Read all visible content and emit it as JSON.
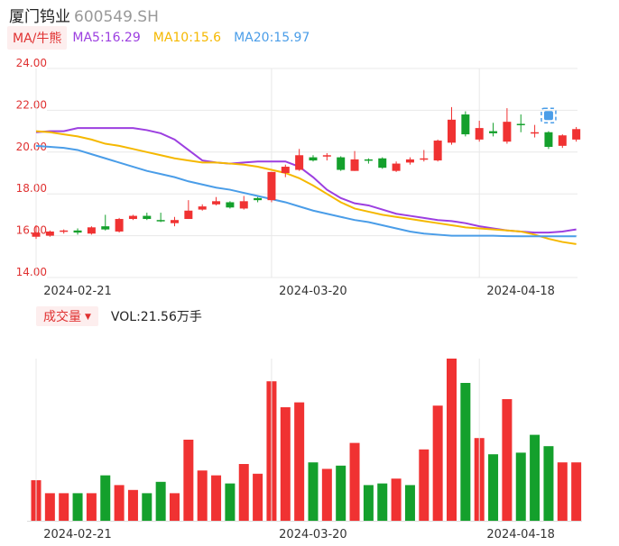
{
  "header": {
    "name": "厦门钨业",
    "code": "600549.SH"
  },
  "ma_legend": {
    "tag": "MA/牛熊",
    "items": [
      {
        "label": "MA5:16.29",
        "color": "#9c3fe0"
      },
      {
        "label": "MA10:15.6",
        "color": "#f5b800"
      },
      {
        "label": "MA20:15.97",
        "color": "#4a9de8"
      }
    ]
  },
  "volume_legend": {
    "tag": "成交量",
    "value_label": "VOL:21.56万手"
  },
  "colors": {
    "up": "#f03232",
    "down": "#14a02c",
    "axis_text": "#e03131",
    "grid": "#e8e8e8"
  },
  "chart_data": [
    {
      "type": "candlestick",
      "title": "",
      "y_ticks": [
        "24.00",
        "22.00",
        "20.00",
        "18.00",
        "16.00",
        "14.00"
      ],
      "ylim": [
        14,
        24
      ],
      "x_tick_labels": [
        {
          "index": 0,
          "label": "2024-02-21"
        },
        {
          "index": 17,
          "label": "2024-03-20"
        },
        {
          "index": 32,
          "label": "2024-04-18"
        }
      ],
      "grid": true,
      "candles": [
        {
          "o": 15.95,
          "c": 16.15,
          "h": 16.5,
          "l": 15.85
        },
        {
          "o": 16.0,
          "c": 16.2,
          "h": 16.25,
          "l": 15.95
        },
        {
          "o": 16.2,
          "c": 16.25,
          "h": 16.3,
          "l": 16.1
        },
        {
          "o": 16.25,
          "c": 16.15,
          "h": 16.35,
          "l": 16.05
        },
        {
          "o": 16.1,
          "c": 16.4,
          "h": 16.45,
          "l": 16.05
        },
        {
          "o": 16.45,
          "c": 16.3,
          "h": 17.0,
          "l": 16.25
        },
        {
          "o": 16.2,
          "c": 16.8,
          "h": 16.85,
          "l": 16.15
        },
        {
          "o": 16.8,
          "c": 16.95,
          "h": 17.0,
          "l": 16.75
        },
        {
          "o": 16.95,
          "c": 16.8,
          "h": 17.1,
          "l": 16.75
        },
        {
          "o": 16.75,
          "c": 16.7,
          "h": 17.1,
          "l": 16.65
        },
        {
          "o": 16.6,
          "c": 16.75,
          "h": 16.9,
          "l": 16.45
        },
        {
          "o": 16.8,
          "c": 17.2,
          "h": 17.7,
          "l": 16.8
        },
        {
          "o": 17.25,
          "c": 17.4,
          "h": 17.5,
          "l": 17.2
        },
        {
          "o": 17.5,
          "c": 17.65,
          "h": 17.85,
          "l": 17.45
        },
        {
          "o": 17.6,
          "c": 17.35,
          "h": 17.65,
          "l": 17.3
        },
        {
          "o": 17.3,
          "c": 17.65,
          "h": 17.9,
          "l": 17.25
        },
        {
          "o": 17.8,
          "c": 17.7,
          "h": 17.85,
          "l": 17.6
        },
        {
          "o": 17.7,
          "c": 19.05,
          "h": 19.05,
          "l": 17.6
        },
        {
          "o": 19.0,
          "c": 19.3,
          "h": 19.4,
          "l": 18.8
        },
        {
          "o": 19.15,
          "c": 19.85,
          "h": 20.15,
          "l": 19.1
        },
        {
          "o": 19.75,
          "c": 19.6,
          "h": 19.85,
          "l": 19.55
        },
        {
          "o": 19.8,
          "c": 19.85,
          "h": 19.95,
          "l": 19.6
        },
        {
          "o": 19.75,
          "c": 19.15,
          "h": 19.8,
          "l": 19.1
        },
        {
          "o": 19.1,
          "c": 19.65,
          "h": 20.05,
          "l": 19.1
        },
        {
          "o": 19.65,
          "c": 19.6,
          "h": 19.7,
          "l": 19.45
        },
        {
          "o": 19.7,
          "c": 19.25,
          "h": 19.75,
          "l": 19.2
        },
        {
          "o": 19.1,
          "c": 19.45,
          "h": 19.55,
          "l": 19.05
        },
        {
          "o": 19.5,
          "c": 19.65,
          "h": 19.75,
          "l": 19.4
        },
        {
          "o": 19.65,
          "c": 19.7,
          "h": 20.1,
          "l": 19.55
        },
        {
          "o": 19.6,
          "c": 20.55,
          "h": 20.6,
          "l": 19.55
        },
        {
          "o": 20.45,
          "c": 21.55,
          "h": 22.15,
          "l": 20.35
        },
        {
          "o": 21.8,
          "c": 20.85,
          "h": 21.95,
          "l": 20.75
        },
        {
          "o": 20.6,
          "c": 21.15,
          "h": 21.5,
          "l": 20.5
        },
        {
          "o": 21.0,
          "c": 20.9,
          "h": 21.4,
          "l": 20.75
        },
        {
          "o": 20.5,
          "c": 21.45,
          "h": 22.1,
          "l": 20.4
        },
        {
          "o": 21.35,
          "c": 21.3,
          "h": 21.8,
          "l": 20.95
        },
        {
          "o": 20.9,
          "c": 20.95,
          "h": 21.3,
          "l": 20.7
        },
        {
          "o": 20.95,
          "c": 20.25,
          "h": 21.0,
          "l": 20.15
        },
        {
          "o": 20.3,
          "c": 20.8,
          "h": 20.85,
          "l": 20.2
        },
        {
          "o": 20.6,
          "c": 21.1,
          "h": 21.2,
          "l": 20.5
        }
      ],
      "ma_lines": [
        {
          "name": "MA5",
          "color": "#9c3fe0",
          "values": [
            20.95,
            21.0,
            21.0,
            21.15,
            21.15,
            21.15,
            21.15,
            21.15,
            21.05,
            20.9,
            20.6,
            20.1,
            19.6,
            19.5,
            19.45,
            19.5,
            19.55,
            19.55,
            19.55,
            19.3,
            18.8,
            18.2,
            17.8,
            17.55,
            17.45,
            17.25,
            17.05,
            16.95,
            16.85,
            16.75,
            16.7,
            16.6,
            16.45,
            16.35,
            16.25,
            16.2,
            16.15,
            16.15,
            16.2,
            16.3
          ]
        },
        {
          "name": "MA10",
          "color": "#f5b800",
          "values": [
            21.0,
            20.95,
            20.85,
            20.75,
            20.6,
            20.4,
            20.3,
            20.15,
            20.0,
            19.85,
            19.7,
            19.6,
            19.5,
            19.5,
            19.45,
            19.4,
            19.3,
            19.15,
            19.0,
            18.75,
            18.4,
            18.0,
            17.6,
            17.3,
            17.15,
            17.0,
            16.9,
            16.8,
            16.7,
            16.6,
            16.5,
            16.4,
            16.35,
            16.3,
            16.25,
            16.2,
            16.05,
            15.85,
            15.7,
            15.6
          ]
        },
        {
          "name": "MA20",
          "color": "#4a9de8",
          "values": [
            20.3,
            20.25,
            20.2,
            20.1,
            19.9,
            19.7,
            19.5,
            19.3,
            19.1,
            18.95,
            18.8,
            18.6,
            18.45,
            18.3,
            18.2,
            18.05,
            17.9,
            17.75,
            17.6,
            17.4,
            17.2,
            17.05,
            16.9,
            16.75,
            16.65,
            16.5,
            16.35,
            16.2,
            16.1,
            16.05,
            16.0,
            16.0,
            16.0,
            16.0,
            15.98,
            15.97,
            15.97,
            15.97,
            15.97,
            15.97
          ]
        }
      ]
    },
    {
      "type": "bar",
      "title": "",
      "x_tick_labels": [
        {
          "index": 0,
          "label": "2024-02-21"
        },
        {
          "index": 17,
          "label": "2024-03-20"
        },
        {
          "index": 32,
          "label": "2024-04-18"
        }
      ],
      "volume_unit": "relative",
      "values": [
        0.25,
        0.17,
        0.17,
        0.17,
        0.17,
        0.28,
        0.22,
        0.19,
        0.17,
        0.24,
        0.17,
        0.5,
        0.31,
        0.28,
        0.23,
        0.35,
        0.29,
        0.86,
        0.7,
        0.73,
        0.36,
        0.32,
        0.34,
        0.48,
        0.22,
        0.23,
        0.26,
        0.22,
        0.44,
        0.71,
        1.0,
        0.85,
        0.51,
        0.41,
        0.75,
        0.42,
        0.53,
        0.46,
        0.36,
        0.36
      ],
      "directions": [
        "up",
        "up",
        "up",
        "down",
        "up",
        "down",
        "up",
        "up",
        "down",
        "down",
        "up",
        "up",
        "up",
        "up",
        "down",
        "up",
        "up",
        "up",
        "up",
        "up",
        "down",
        "up",
        "down",
        "up",
        "down",
        "down",
        "up",
        "down",
        "up",
        "up",
        "up",
        "down",
        "up",
        "down",
        "up",
        "down",
        "down",
        "down",
        "up",
        "up"
      ]
    }
  ]
}
